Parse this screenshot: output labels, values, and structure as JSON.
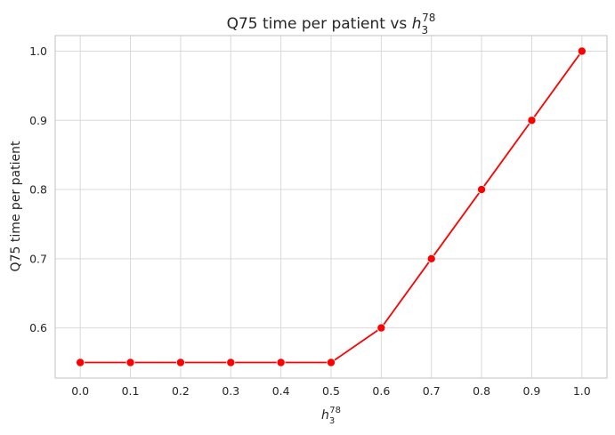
{
  "chart_data": {
    "type": "line",
    "title_main": "Q75 time per patient vs ",
    "title_var": "h",
    "title_sub": "3",
    "title_sup": "78",
    "xlabel_var": "h",
    "xlabel_sub": "3",
    "xlabel_sup": "78",
    "ylabel": "Q75 time per patient",
    "x": [
      0.0,
      0.1,
      0.2,
      0.3,
      0.4,
      0.5,
      0.6,
      0.7,
      0.8,
      0.9,
      1.0
    ],
    "y": [
      0.55,
      0.55,
      0.55,
      0.55,
      0.55,
      0.55,
      0.6,
      0.7,
      0.8,
      0.9,
      1.0
    ],
    "x_ticks": [
      "0.0",
      "0.1",
      "0.2",
      "0.3",
      "0.4",
      "0.5",
      "0.6",
      "0.7",
      "0.8",
      "0.9",
      "1.0"
    ],
    "y_ticks": [
      "0.6",
      "0.7",
      "0.8",
      "0.9",
      "1.0"
    ],
    "xlim": [
      -0.05,
      1.05
    ],
    "ylim": [
      0.5275,
      1.0225
    ],
    "grid": true,
    "line_color": "#ff0000",
    "marker_color": "#ff0000"
  }
}
